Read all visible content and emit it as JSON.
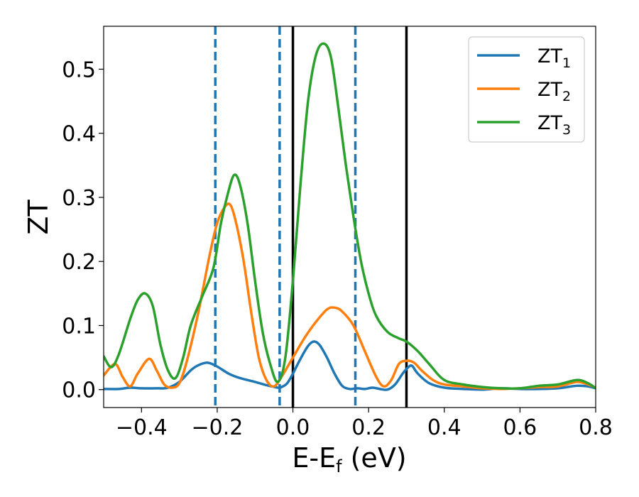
{
  "chart_data": {
    "type": "line",
    "xlabel": "E-E",
    "xlabel_subscript": "f",
    "xlabel_unit": " (eV)",
    "ylabel": "ZT",
    "xlim": [
      -0.5,
      0.8
    ],
    "ylim": [
      -0.028,
      0.567
    ],
    "xticks": [
      -0.4,
      -0.2,
      0.0,
      0.2,
      0.4,
      0.6,
      0.8
    ],
    "xtick_labels": [
      "−0.4",
      "−0.2",
      "0.0",
      "0.2",
      "0.4",
      "0.6",
      "0.8"
    ],
    "yticks": [
      0.0,
      0.1,
      0.2,
      0.3,
      0.4,
      0.5
    ],
    "ytick_labels": [
      "0.0",
      "0.1",
      "0.2",
      "0.3",
      "0.4",
      "0.5"
    ],
    "grid": false,
    "legend_position": "top-right",
    "series": [
      {
        "name": "ZT",
        "name_subscript": "1",
        "color": "#1f77b4",
        "points": [
          [
            -0.5,
            0.001
          ],
          [
            -0.46,
            0.001
          ],
          [
            -0.43,
            0.003
          ],
          [
            -0.4,
            0.002
          ],
          [
            -0.36,
            0.002
          ],
          [
            -0.33,
            0.003
          ],
          [
            -0.3,
            0.012
          ],
          [
            -0.27,
            0.03
          ],
          [
            -0.25,
            0.038
          ],
          [
            -0.225,
            0.042
          ],
          [
            -0.2,
            0.036
          ],
          [
            -0.17,
            0.025
          ],
          [
            -0.14,
            0.018
          ],
          [
            -0.1,
            0.012
          ],
          [
            -0.07,
            0.007
          ],
          [
            -0.04,
            0.003
          ],
          [
            -0.03,
            0.004
          ],
          [
            -0.015,
            0.01
          ],
          [
            0.0,
            0.025
          ],
          [
            0.02,
            0.048
          ],
          [
            0.04,
            0.068
          ],
          [
            0.055,
            0.075
          ],
          [
            0.07,
            0.07
          ],
          [
            0.09,
            0.05
          ],
          [
            0.11,
            0.025
          ],
          [
            0.13,
            0.006
          ],
          [
            0.15,
            0.001
          ],
          [
            0.17,
            0.002
          ],
          [
            0.19,
            0.001
          ],
          [
            0.21,
            0.003
          ],
          [
            0.23,
            0.001
          ],
          [
            0.25,
            0.0
          ],
          [
            0.27,
            0.008
          ],
          [
            0.29,
            0.025
          ],
          [
            0.305,
            0.035
          ],
          [
            0.315,
            0.037
          ],
          [
            0.33,
            0.025
          ],
          [
            0.36,
            0.01
          ],
          [
            0.4,
            0.003
          ],
          [
            0.45,
            0.001
          ],
          [
            0.5,
            0.0
          ],
          [
            0.55,
            0.002
          ],
          [
            0.6,
            0.001
          ],
          [
            0.65,
            0.001
          ],
          [
            0.7,
            0.002
          ],
          [
            0.75,
            0.006
          ],
          [
            0.78,
            0.005
          ],
          [
            0.8,
            0.002
          ]
        ]
      },
      {
        "name": "ZT",
        "name_subscript": "2",
        "color": "#ff7f0e",
        "points": [
          [
            -0.5,
            0.022
          ],
          [
            -0.47,
            0.04
          ],
          [
            -0.45,
            0.02
          ],
          [
            -0.43,
            0.005
          ],
          [
            -0.41,
            0.025
          ],
          [
            -0.38,
            0.048
          ],
          [
            -0.36,
            0.03
          ],
          [
            -0.34,
            0.008
          ],
          [
            -0.32,
            0.003
          ],
          [
            -0.3,
            0.01
          ],
          [
            -0.28,
            0.045
          ],
          [
            -0.25,
            0.12
          ],
          [
            -0.22,
            0.21
          ],
          [
            -0.2,
            0.26
          ],
          [
            -0.18,
            0.285
          ],
          [
            -0.165,
            0.288
          ],
          [
            -0.15,
            0.26
          ],
          [
            -0.13,
            0.2
          ],
          [
            -0.11,
            0.12
          ],
          [
            -0.09,
            0.05
          ],
          [
            -0.07,
            0.015
          ],
          [
            -0.05,
            0.005
          ],
          [
            -0.03,
            0.02
          ],
          [
            0.0,
            0.05
          ],
          [
            0.03,
            0.08
          ],
          [
            0.06,
            0.105
          ],
          [
            0.09,
            0.125
          ],
          [
            0.11,
            0.128
          ],
          [
            0.13,
            0.122
          ],
          [
            0.16,
            0.1
          ],
          [
            0.19,
            0.06
          ],
          [
            0.22,
            0.02
          ],
          [
            0.24,
            0.005
          ],
          [
            0.26,
            0.015
          ],
          [
            0.28,
            0.04
          ],
          [
            0.3,
            0.045
          ],
          [
            0.32,
            0.042
          ],
          [
            0.34,
            0.03
          ],
          [
            0.37,
            0.015
          ],
          [
            0.4,
            0.008
          ],
          [
            0.45,
            0.005
          ],
          [
            0.5,
            0.002
          ],
          [
            0.55,
            0.001
          ],
          [
            0.6,
            0.002
          ],
          [
            0.65,
            0.004
          ],
          [
            0.7,
            0.005
          ],
          [
            0.75,
            0.012
          ],
          [
            0.78,
            0.008
          ],
          [
            0.8,
            0.003
          ]
        ]
      },
      {
        "name": "ZT",
        "name_subscript": "3",
        "color": "#2ca02c",
        "points": [
          [
            -0.5,
            0.052
          ],
          [
            -0.48,
            0.035
          ],
          [
            -0.46,
            0.055
          ],
          [
            -0.43,
            0.11
          ],
          [
            -0.41,
            0.14
          ],
          [
            -0.39,
            0.15
          ],
          [
            -0.37,
            0.13
          ],
          [
            -0.35,
            0.07
          ],
          [
            -0.33,
            0.03
          ],
          [
            -0.31,
            0.018
          ],
          [
            -0.29,
            0.05
          ],
          [
            -0.27,
            0.1
          ],
          [
            -0.24,
            0.145
          ],
          [
            -0.21,
            0.19
          ],
          [
            -0.19,
            0.26
          ],
          [
            -0.17,
            0.31
          ],
          [
            -0.155,
            0.335
          ],
          [
            -0.14,
            0.32
          ],
          [
            -0.12,
            0.26
          ],
          [
            -0.1,
            0.17
          ],
          [
            -0.08,
            0.09
          ],
          [
            -0.06,
            0.04
          ],
          [
            -0.04,
            0.012
          ],
          [
            -0.02,
            0.05
          ],
          [
            0.0,
            0.17
          ],
          [
            0.02,
            0.32
          ],
          [
            0.04,
            0.45
          ],
          [
            0.06,
            0.52
          ],
          [
            0.08,
            0.54
          ],
          [
            0.1,
            0.52
          ],
          [
            0.12,
            0.44
          ],
          [
            0.14,
            0.35
          ],
          [
            0.16,
            0.27
          ],
          [
            0.18,
            0.2
          ],
          [
            0.2,
            0.15
          ],
          [
            0.22,
            0.115
          ],
          [
            0.25,
            0.09
          ],
          [
            0.28,
            0.08
          ],
          [
            0.3,
            0.075
          ],
          [
            0.33,
            0.06
          ],
          [
            0.36,
            0.04
          ],
          [
            0.4,
            0.015
          ],
          [
            0.45,
            0.008
          ],
          [
            0.5,
            0.004
          ],
          [
            0.55,
            0.002
          ],
          [
            0.6,
            0.002
          ],
          [
            0.65,
            0.006
          ],
          [
            0.7,
            0.008
          ],
          [
            0.75,
            0.015
          ],
          [
            0.78,
            0.01
          ],
          [
            0.8,
            0.002
          ]
        ]
      }
    ],
    "vlines": [
      {
        "x": -0.205,
        "style": "dashed",
        "color": "#1f77b4"
      },
      {
        "x": -0.035,
        "style": "dashed",
        "color": "#1f77b4"
      },
      {
        "x": 0.165,
        "style": "dashed",
        "color": "#1f77b4"
      },
      {
        "x": 0.0,
        "style": "solid",
        "color": "#000000"
      },
      {
        "x": 0.3,
        "style": "solid",
        "color": "#000000"
      }
    ]
  }
}
